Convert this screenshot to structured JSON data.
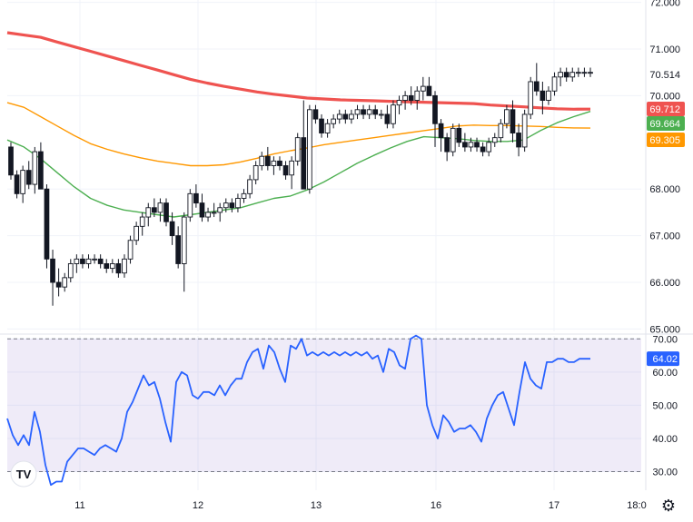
{
  "chart_data": [
    {
      "type": "candlestick",
      "x_tick_labels": [
        "11",
        "12",
        "13",
        "16",
        "17",
        "18:0"
      ],
      "y_tick_labels": [
        "72.000",
        "71.000",
        "70.000",
        "68.000",
        "67.000",
        "66.000",
        "65.000"
      ],
      "ylim": [
        64.95,
        72.05
      ],
      "grid": true,
      "price_labels": [
        {
          "text": "70.514",
          "value": 70.514,
          "style": "plain"
        },
        {
          "text": "69.712",
          "value": 69.712,
          "color": "#ef5350"
        },
        {
          "text": "69.664",
          "value": 69.664,
          "color": "#4caf50"
        },
        {
          "text": "69.305",
          "value": 69.305,
          "color": "#ff9800"
        }
      ],
      "candles_ohlc": [
        [
          68.9,
          69.0,
          68.2,
          68.3
        ],
        [
          68.3,
          68.4,
          67.8,
          67.9
        ],
        [
          67.9,
          68.5,
          67.7,
          68.4
        ],
        [
          68.4,
          68.6,
          68.0,
          68.1
        ],
        [
          68.1,
          68.9,
          67.9,
          68.8
        ],
        [
          68.8,
          69.0,
          68.0,
          68.0
        ],
        [
          68.0,
          68.1,
          66.3,
          66.5
        ],
        [
          66.5,
          66.7,
          65.5,
          66.0
        ],
        [
          66.0,
          66.3,
          65.7,
          65.9
        ],
        [
          65.9,
          66.2,
          65.8,
          66.1
        ],
        [
          66.1,
          66.5,
          66.0,
          66.4
        ],
        [
          66.4,
          66.6,
          66.2,
          66.5
        ],
        [
          66.5,
          66.6,
          66.3,
          66.4
        ],
        [
          66.4,
          66.6,
          66.3,
          66.5
        ],
        [
          66.5,
          66.6,
          66.4,
          66.5
        ],
        [
          66.5,
          66.6,
          66.3,
          66.4
        ],
        [
          66.4,
          66.5,
          66.2,
          66.3
        ],
        [
          66.3,
          66.5,
          66.2,
          66.4
        ],
        [
          66.4,
          66.5,
          66.1,
          66.2
        ],
        [
          66.2,
          66.6,
          66.1,
          66.5
        ],
        [
          66.5,
          67.0,
          66.4,
          66.9
        ],
        [
          66.9,
          67.3,
          66.8,
          67.2
        ],
        [
          67.2,
          67.5,
          67.0,
          67.4
        ],
        [
          67.4,
          67.7,
          67.2,
          67.6
        ],
        [
          67.6,
          67.8,
          67.4,
          67.5
        ],
        [
          67.5,
          67.8,
          67.3,
          67.7
        ],
        [
          67.7,
          67.8,
          67.2,
          67.3
        ],
        [
          67.3,
          67.5,
          66.8,
          67.0
        ],
        [
          67.0,
          67.2,
          66.3,
          66.4
        ],
        [
          66.4,
          67.5,
          65.8,
          67.4
        ],
        [
          67.4,
          68.0,
          67.3,
          67.9
        ],
        [
          67.9,
          68.1,
          67.6,
          67.7
        ],
        [
          67.7,
          67.9,
          67.3,
          67.4
        ],
        [
          67.4,
          67.6,
          67.3,
          67.5
        ],
        [
          67.5,
          67.7,
          67.4,
          67.5
        ],
        [
          67.5,
          67.7,
          67.3,
          67.6
        ],
        [
          67.6,
          67.8,
          67.5,
          67.7
        ],
        [
          67.7,
          67.8,
          67.5,
          67.6
        ],
        [
          67.6,
          67.9,
          67.5,
          67.8
        ],
        [
          67.8,
          68.0,
          67.7,
          67.9
        ],
        [
          67.9,
          68.3,
          67.8,
          68.2
        ],
        [
          68.2,
          68.6,
          68.1,
          68.5
        ],
        [
          68.5,
          68.8,
          68.4,
          68.7
        ],
        [
          68.7,
          68.9,
          68.4,
          68.5
        ],
        [
          68.5,
          68.7,
          68.3,
          68.6
        ],
        [
          68.6,
          68.7,
          68.4,
          68.5
        ],
        [
          68.5,
          68.6,
          68.2,
          68.3
        ],
        [
          68.3,
          68.7,
          68.0,
          68.6
        ],
        [
          68.6,
          69.2,
          68.5,
          69.1
        ],
        [
          69.1,
          69.9,
          68.0,
          68.0
        ],
        [
          68.0,
          69.8,
          67.9,
          69.7
        ],
        [
          69.7,
          69.8,
          69.4,
          69.5
        ],
        [
          69.5,
          69.6,
          69.1,
          69.2
        ],
        [
          69.2,
          69.5,
          69.1,
          69.4
        ],
        [
          69.4,
          69.6,
          69.3,
          69.5
        ],
        [
          69.5,
          69.7,
          69.4,
          69.6
        ],
        [
          69.6,
          69.7,
          69.4,
          69.5
        ],
        [
          69.5,
          69.7,
          69.4,
          69.6
        ],
        [
          69.6,
          69.8,
          69.5,
          69.7
        ],
        [
          69.7,
          69.8,
          69.5,
          69.6
        ],
        [
          69.6,
          69.8,
          69.5,
          69.7
        ],
        [
          69.7,
          69.8,
          69.5,
          69.6
        ],
        [
          69.6,
          69.7,
          69.5,
          69.6
        ],
        [
          69.6,
          69.8,
          69.3,
          69.4
        ],
        [
          69.4,
          69.9,
          69.3,
          69.8
        ],
        [
          69.8,
          70.0,
          69.6,
          69.9
        ],
        [
          69.9,
          70.1,
          69.7,
          70.0
        ],
        [
          70.0,
          70.2,
          69.8,
          69.9
        ],
        [
          69.9,
          70.2,
          69.7,
          70.1
        ],
        [
          70.1,
          70.4,
          69.9,
          70.2
        ],
        [
          70.2,
          70.4,
          70.0,
          70.0
        ],
        [
          70.0,
          70.1,
          68.9,
          69.4
        ],
        [
          69.4,
          69.5,
          68.8,
          69.1
        ],
        [
          69.1,
          69.2,
          68.6,
          68.8
        ],
        [
          68.8,
          69.4,
          68.7,
          69.3
        ],
        [
          69.3,
          69.4,
          68.9,
          69.0
        ],
        [
          69.0,
          69.2,
          68.8,
          68.9
        ],
        [
          68.9,
          69.1,
          68.8,
          69.0
        ],
        [
          69.0,
          69.1,
          68.8,
          68.9
        ],
        [
          68.9,
          69.0,
          68.7,
          68.8
        ],
        [
          68.8,
          69.1,
          68.7,
          69.0
        ],
        [
          69.0,
          69.2,
          68.9,
          69.1
        ],
        [
          69.1,
          69.5,
          69.0,
          69.4
        ],
        [
          69.4,
          69.8,
          69.3,
          69.7
        ],
        [
          69.7,
          69.9,
          69.0,
          69.2
        ],
        [
          69.2,
          69.4,
          68.7,
          68.9
        ],
        [
          68.9,
          69.7,
          68.8,
          69.6
        ],
        [
          69.6,
          70.4,
          69.5,
          70.3
        ],
        [
          70.3,
          70.7,
          70.0,
          70.1
        ],
        [
          70.1,
          70.3,
          69.6,
          69.9
        ],
        [
          69.9,
          70.2,
          69.8,
          70.1
        ],
        [
          70.1,
          70.5,
          70.0,
          70.4
        ],
        [
          70.4,
          70.6,
          70.2,
          70.5
        ],
        [
          70.5,
          70.6,
          70.3,
          70.4
        ],
        [
          70.4,
          70.6,
          70.3,
          70.5
        ],
        [
          70.5,
          70.6,
          70.4,
          70.5
        ],
        [
          70.5,
          70.6,
          70.4,
          70.5
        ],
        [
          70.5,
          70.6,
          70.4,
          70.5
        ]
      ],
      "series": [
        {
          "values": [
            71.35,
            71.3,
            71.25,
            71.15,
            71.05,
            70.95,
            70.85,
            70.75,
            70.65,
            70.55,
            70.45,
            70.35,
            70.27,
            70.2,
            70.14,
            70.08,
            70.03,
            69.99,
            69.95,
            69.93,
            69.91,
            69.9,
            69.89,
            69.88,
            69.87,
            69.86,
            69.85,
            69.84,
            69.83,
            69.8,
            69.78,
            69.76,
            69.74,
            69.72,
            69.71,
            69.712
          ],
          "color": "#ef5350"
        },
        {
          "values": [
            69.85,
            69.75,
            69.55,
            69.35,
            69.15,
            68.97,
            68.85,
            68.75,
            68.67,
            68.6,
            68.55,
            68.5,
            68.5,
            68.52,
            68.58,
            68.66,
            68.75,
            68.82,
            68.88,
            68.95,
            69.0,
            69.05,
            69.1,
            69.15,
            69.2,
            69.25,
            69.3,
            69.35,
            69.37,
            69.36,
            69.36,
            69.35,
            69.34,
            69.32,
            69.31,
            69.305
          ],
          "color": "#ff9800"
        },
        {
          "values": [
            69.05,
            68.9,
            68.65,
            68.35,
            68.05,
            67.8,
            67.65,
            67.55,
            67.5,
            67.45,
            67.4,
            67.45,
            67.5,
            67.55,
            67.6,
            67.7,
            67.8,
            67.85,
            67.98,
            68.15,
            68.35,
            68.55,
            68.72,
            68.88,
            69.02,
            69.12,
            69.1,
            69.08,
            69.04,
            69.02,
            69.02,
            69.05,
            69.25,
            69.42,
            69.55,
            69.664
          ],
          "color": "#4caf50"
        }
      ]
    },
    {
      "type": "line",
      "y_tick_labels": [
        "70.00",
        "60.00",
        "50.00",
        "40.00",
        "30.00"
      ],
      "ylim": [
        24.4,
        70.9
      ],
      "band": [
        30,
        70
      ],
      "last_value_label": "64.02",
      "series": [
        {
          "values": [
            46,
            41,
            38,
            41,
            38,
            48,
            42,
            32,
            26,
            27,
            27,
            33,
            35,
            37,
            37,
            36,
            35,
            37,
            38,
            37,
            36,
            40,
            48,
            51,
            55,
            59,
            56,
            57,
            52,
            45,
            39,
            57,
            60,
            59,
            53,
            52,
            54,
            54,
            53,
            56,
            53,
            56,
            58,
            58,
            63,
            66,
            67,
            61,
            68,
            66,
            61,
            57,
            68,
            67,
            70,
            65,
            66,
            65,
            66,
            65,
            66,
            65,
            66,
            65,
            66,
            65,
            66,
            64,
            65,
            60,
            67,
            66,
            62,
            61,
            70,
            71,
            70,
            50,
            44,
            40,
            47,
            45,
            42,
            43,
            43,
            44,
            42,
            39,
            46,
            50,
            53,
            54,
            49,
            44,
            54,
            63,
            58,
            56,
            55,
            63,
            63,
            64,
            64,
            63,
            63,
            64,
            64,
            64
          ]
        }
      ],
      "color": "#2962ff"
    }
  ],
  "ui": {
    "logo_text": "TV",
    "settings_icon": "gear-icon"
  }
}
